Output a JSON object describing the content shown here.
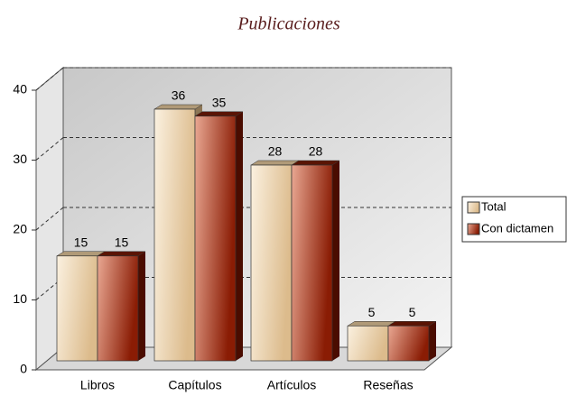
{
  "chart_data": {
    "type": "bar",
    "title": "Publicaciones",
    "categories": [
      "Libros",
      "Capítulos",
      "Artículos",
      "Reseñas"
    ],
    "series": [
      {
        "name": "Total",
        "color": "#e9cfa6",
        "values": [
          15,
          36,
          28,
          5
        ]
      },
      {
        "name": "Con dictamen",
        "color": "#a8381c",
        "values": [
          15,
          35,
          28,
          5
        ]
      }
    ],
    "ylim": [
      0,
      40
    ],
    "yticks": [
      0,
      10,
      20,
      30,
      40
    ],
    "grid": true,
    "legend": "right"
  }
}
